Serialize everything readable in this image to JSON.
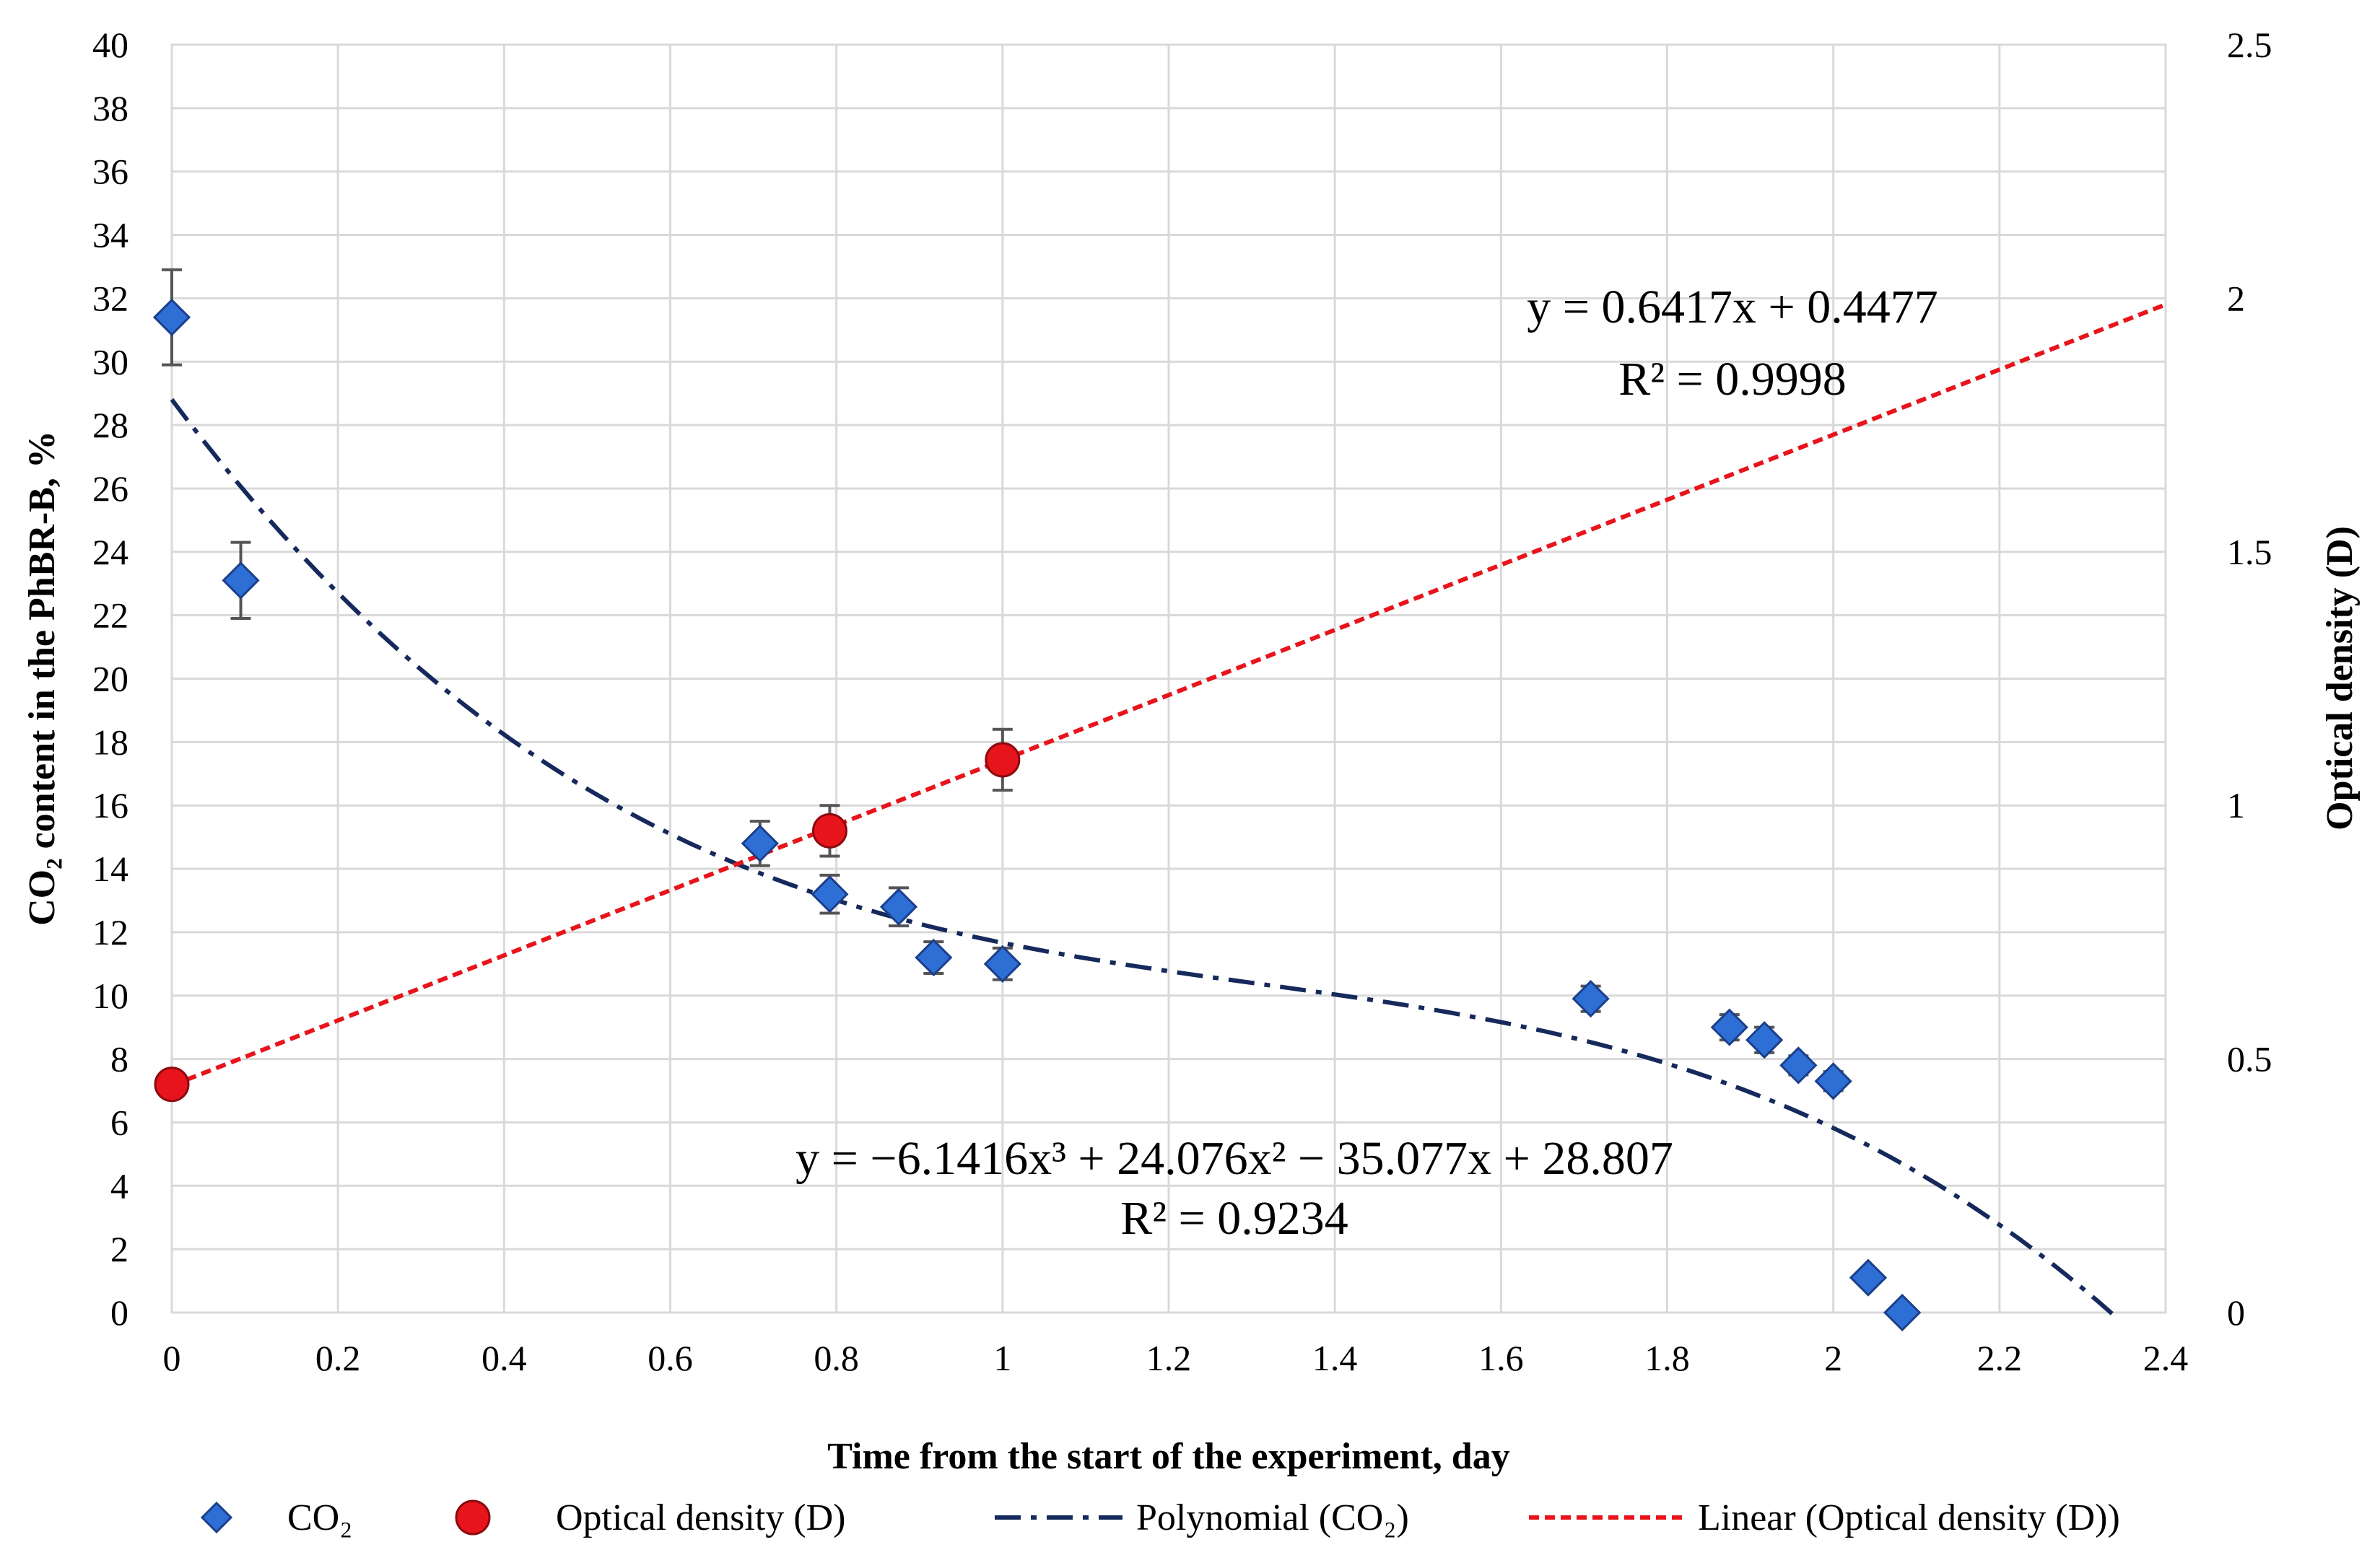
{
  "chart_data": {
    "type": "scatter",
    "x_label": "Time from the start of the experiment, day",
    "y_left_label": "CO₂ content in the PhBR-B, %",
    "y_right_label": "Optical density (D)",
    "x_range": [
      0,
      2.4
    ],
    "x_ticks": [
      "0",
      "0.2",
      "0.4",
      "0.6",
      "0.8",
      "1",
      "1.2",
      "1.4",
      "1.6",
      "1.8",
      "2",
      "2.2",
      "2.4"
    ],
    "y_left_range": [
      0,
      40
    ],
    "y_left_ticks": [
      "0",
      "2",
      "4",
      "6",
      "8",
      "10",
      "12",
      "14",
      "16",
      "18",
      "20",
      "22",
      "24",
      "26",
      "28",
      "30",
      "32",
      "34",
      "36",
      "38",
      "40"
    ],
    "y_right_range": [
      0,
      2.5
    ],
    "y_right_ticks": [
      "0",
      "0.5",
      "1",
      "1.5",
      "2",
      "2.5"
    ],
    "grid": true,
    "series": [
      {
        "name": "CO₂",
        "axis": "left",
        "marker": "diamond",
        "color": "#2e6fd6",
        "points": [
          {
            "x": 0,
            "y": 31.4,
            "err": 1.5
          },
          {
            "x": 0.083,
            "y": 23.1,
            "err": 1.2
          },
          {
            "x": 0.708,
            "y": 14.8,
            "err": 0.7
          },
          {
            "x": 0.792,
            "y": 13.2,
            "err": 0.6
          },
          {
            "x": 0.875,
            "y": 12.8,
            "err": 0.6
          },
          {
            "x": 0.917,
            "y": 11.2,
            "err": 0.5
          },
          {
            "x": 1.0,
            "y": 11.0,
            "err": 0.5
          },
          {
            "x": 1.708,
            "y": 9.9,
            "err": 0.4
          },
          {
            "x": 1.875,
            "y": 9.0,
            "err": 0.4
          },
          {
            "x": 1.917,
            "y": 8.6,
            "err": 0.4
          },
          {
            "x": 1.958,
            "y": 7.8,
            "err": 0.3
          },
          {
            "x": 2.0,
            "y": 7.3,
            "err": 0.3
          },
          {
            "x": 2.042,
            "y": 1.1,
            "err": 0
          },
          {
            "x": 2.083,
            "y": 0.0,
            "err": 0
          }
        ]
      },
      {
        "name": "Optical density (D)",
        "axis": "right",
        "marker": "circle",
        "color": "#e8141c",
        "points": [
          {
            "x": 0,
            "y": 0.45,
            "err": 0
          },
          {
            "x": 0.792,
            "y": 0.95,
            "err": 0.05
          },
          {
            "x": 1.0,
            "y": 1.09,
            "err": 0.06
          }
        ]
      }
    ],
    "trendlines": [
      {
        "name": "Polynomial (CO₂)",
        "axis": "left",
        "kind": "polynomial",
        "coefficients": [
          28.807,
          -35.077,
          24.076,
          -6.1416
        ],
        "x_range": [
          0,
          2.34
        ],
        "color": "#16295c",
        "equation": "y = −6.1416x³ + 24.076x² − 35.077x + 28.807",
        "r2": "R² = 0.9234"
      },
      {
        "name": "Linear (Optical density (D))",
        "axis": "right",
        "kind": "linear",
        "coefficients": [
          0.4477,
          0.6417
        ],
        "x_range": [
          0,
          2.4
        ],
        "color": "#e8141c",
        "equation": "y = 0.6417x + 0.4477",
        "r2": "R² = 0.9998"
      }
    ],
    "legend": {
      "placement": "bottom",
      "items": [
        "CO₂",
        "Optical density (D)",
        "Polynomial (CO₂)",
        "Linear (Optical density (D))"
      ]
    }
  }
}
